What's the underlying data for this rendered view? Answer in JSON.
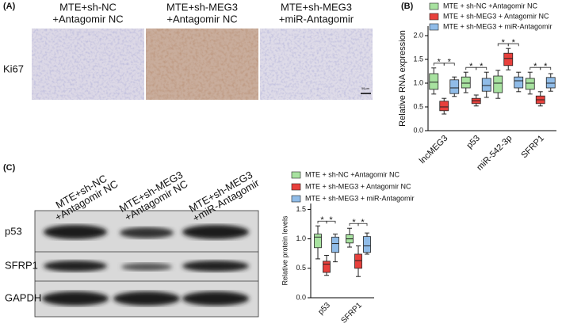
{
  "panels": {
    "a": {
      "label": "(A)",
      "row_label": "Ki67",
      "scale_bar": "50μm",
      "columns": [
        [
          "MTE+sh-NC",
          "+Antagomir NC"
        ],
        [
          "MTE+sh-MEG3",
          "+Antagomir NC"
        ],
        [
          "MTE+sh-MEG3",
          "+miR-Antagomir"
        ]
      ]
    },
    "b": {
      "label": "(B)"
    },
    "c": {
      "label": "(C)",
      "columns": [
        [
          "MTE+sh-NC",
          "+Antagomir NC"
        ],
        [
          "MTE+sh-MEG3",
          "+Antagomir NC"
        ],
        [
          "MTE+sh-MEG3",
          "+miR-Antagomir"
        ]
      ],
      "rows": [
        "p53",
        "SFRP1",
        "GAPDH"
      ]
    }
  },
  "chart_data": [
    {
      "type": "box",
      "y_label": "Relative RNA expression",
      "categories": [
        "lncMEG3",
        "p53",
        "miR-542-3p",
        "SFRP1"
      ],
      "series": [
        {
          "name": "MTE + sh-NC +Antagomir NC",
          "color": "#a8e2a0",
          "values": [
            [
              0.77,
              0.87,
              1.02,
              1.2,
              1.32
            ],
            [
              0.8,
              0.9,
              1.0,
              1.13,
              1.23
            ],
            [
              0.68,
              0.8,
              1.0,
              1.15,
              1.27
            ],
            [
              0.77,
              0.87,
              1.0,
              1.1,
              1.23
            ]
          ]
        },
        {
          "name": "MTE + sh-MEG3 + Antagomir NC",
          "color": "#e8403c",
          "values": [
            [
              0.35,
              0.42,
              0.5,
              0.62,
              0.68
            ],
            [
              0.52,
              0.57,
              0.63,
              0.68,
              0.75
            ],
            [
              1.28,
              1.37,
              1.52,
              1.63,
              1.73
            ],
            [
              0.52,
              0.57,
              0.65,
              0.73,
              0.82
            ]
          ]
        },
        {
          "name": "MTE + sh-MEG3 + miR-Antagomir",
          "color": "#90bce8",
          "values": [
            [
              0.72,
              0.78,
              0.9,
              1.07,
              1.13
            ],
            [
              0.7,
              0.83,
              0.95,
              1.1,
              1.23
            ],
            [
              0.82,
              0.9,
              1.05,
              1.13,
              1.23
            ],
            [
              0.83,
              0.9,
              1.0,
              1.12,
              1.2
            ]
          ]
        }
      ],
      "annotations": [
        "*",
        "*",
        "*",
        "*",
        "*",
        "*",
        "*",
        "*"
      ],
      "ylim": [
        0,
        2.2
      ],
      "yticks": [
        {
          "value": 0,
          "label": "0.0"
        },
        {
          "value": 0.5,
          "label": "0.5"
        },
        {
          "value": 1,
          "label": "1.0"
        },
        {
          "value": 1.5,
          "label": "1.5"
        },
        {
          "value": 2,
          "label": "2.0"
        }
      ]
    },
    {
      "type": "box",
      "y_label": "Relative protein levels",
      "categories": [
        "p53",
        "SFRP1"
      ],
      "series": [
        {
          "name": "MTE + sh-NC +Antagomir NC",
          "color": "#a8e2a0",
          "values": [
            [
              0.66,
              0.85,
              1.03,
              1.08,
              1.22
            ],
            [
              0.86,
              0.93,
              1.0,
              1.07,
              1.18
            ]
          ]
        },
        {
          "name": "MTE + sh-MEG3 + Antagomir NC",
          "color": "#e8403c",
          "values": [
            [
              0.38,
              0.43,
              0.57,
              0.62,
              0.72
            ],
            [
              0.36,
              0.5,
              0.63,
              0.74,
              0.88
            ]
          ]
        },
        {
          "name": "MTE + sh-MEG3 + miR-Antagomir",
          "color": "#90bce8",
          "values": [
            [
              0.61,
              0.77,
              0.92,
              1.03,
              1.08
            ],
            [
              0.74,
              0.77,
              0.88,
              1.04,
              1.1
            ]
          ]
        }
      ],
      "annotations": [
        "*",
        "*",
        "*",
        "*"
      ],
      "ylim": [
        0,
        1.6
      ],
      "yticks": [
        {
          "value": 0,
          "label": "0.0"
        },
        {
          "value": 0.5,
          "label": "0.5"
        },
        {
          "value": 1,
          "label": "1.0"
        },
        {
          "value": 1.5,
          "label": "1.5"
        }
      ]
    }
  ]
}
